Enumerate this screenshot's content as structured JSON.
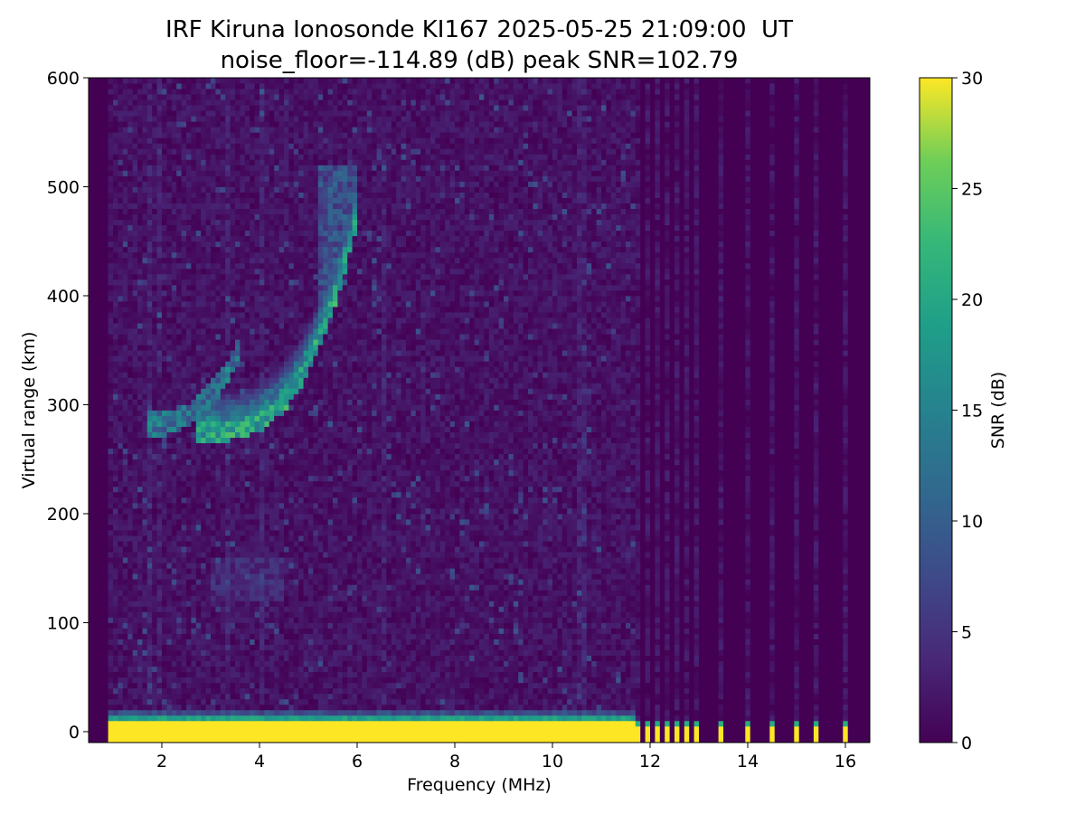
{
  "chart_data": {
    "type": "heatmap",
    "title": "IRF Kiruna Ionosonde KI167 2025-05-25 21:09:00  UT",
    "subtitle": "noise_floor=-114.89 (dB) peak SNR=102.79",
    "xlabel": "Frequency (MHz)",
    "ylabel": "Virtual range (km)",
    "colorbar_label": "SNR (dB)",
    "colormap": "viridis",
    "xlim": [
      0.5,
      16.5
    ],
    "ylim": [
      -10,
      600
    ],
    "clim": [
      0,
      30
    ],
    "x_ticks": [
      2,
      4,
      6,
      8,
      10,
      12,
      14,
      16
    ],
    "y_ticks": [
      0,
      100,
      200,
      300,
      400,
      500,
      600
    ],
    "colorbar_ticks": [
      0,
      5,
      10,
      15,
      20,
      25,
      30
    ],
    "data_freq_range_mhz": [
      0.9,
      16.3
    ],
    "noise_floor_db": -114.89,
    "peak_snr_db": 102.79,
    "features": [
      {
        "name": "ground-echo-band",
        "freq_mhz": [
          0.9,
          11.7
        ],
        "range_km": [
          -5,
          20
        ],
        "snr_db": 30
      },
      {
        "name": "F-layer-O-trace",
        "freq_mhz": [
          2.7,
          6.0
        ],
        "range_km": [
          270,
          470
        ],
        "snr_db": 22
      },
      {
        "name": "F-layer-X-trace",
        "freq_mhz": [
          1.7,
          3.6
        ],
        "range_km": [
          275,
          345
        ],
        "snr_db": 15
      },
      {
        "name": "multi-hop-echo",
        "freq_mhz": [
          3.0,
          4.5
        ],
        "range_km": [
          120,
          160
        ],
        "snr_db": 5
      }
    ],
    "ground_echo_columns_mhz": [
      11.75,
      11.95,
      12.15,
      12.35,
      12.55,
      12.75,
      12.95,
      13.45,
      14.0,
      14.5,
      15.0,
      15.4,
      16.0
    ]
  }
}
